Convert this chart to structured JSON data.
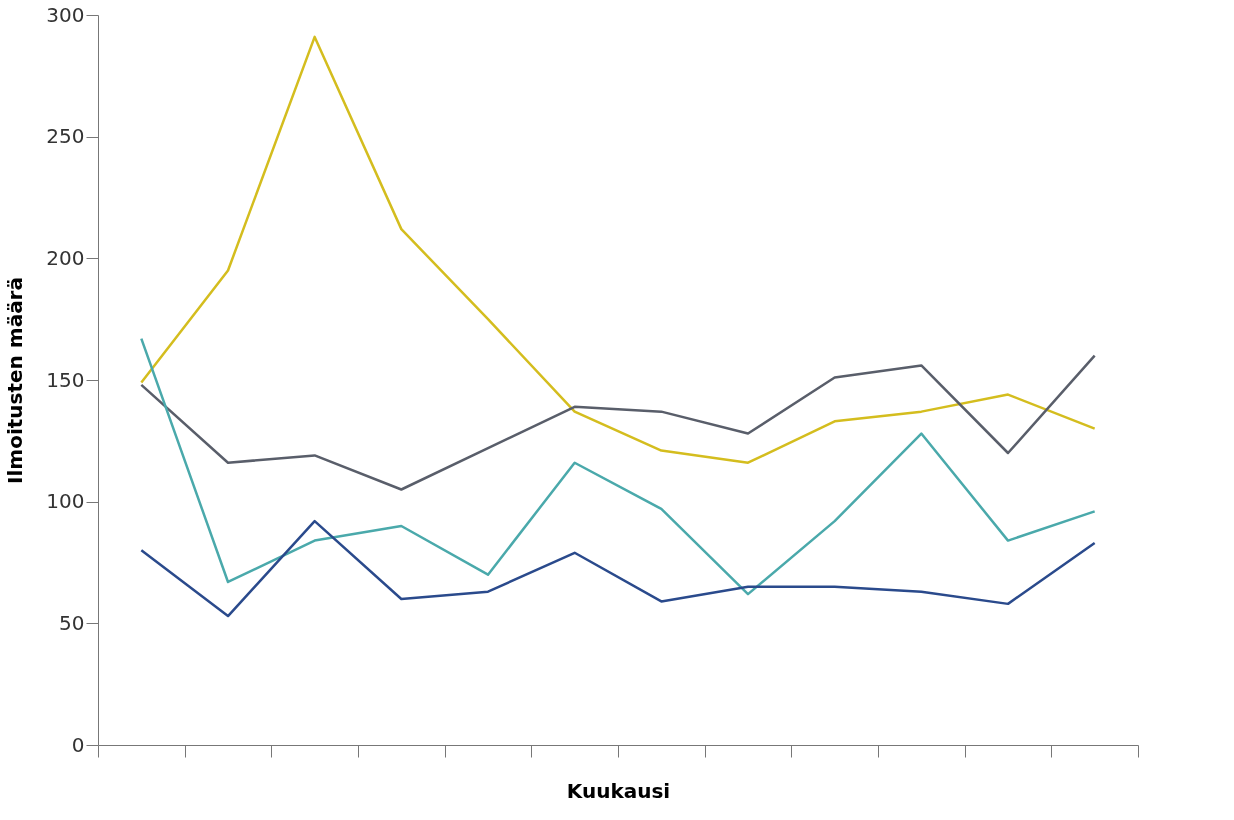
{
  "chart_data": {
    "type": "line",
    "xlabel": "Kuukausi",
    "ylabel": "Ilmoitusten määrä",
    "categories": [
      null,
      null,
      null,
      null,
      null,
      null,
      null,
      null,
      null,
      null,
      null,
      null
    ],
    "ylim": [
      0,
      300
    ],
    "yticks": [
      0,
      50,
      100,
      150,
      200,
      250,
      300
    ],
    "grid": false,
    "tick_labels": "y",
    "line_style": "solid",
    "marker": "none",
    "series": [
      {
        "color": "#d4bd1e",
        "values": [
          149,
          195,
          291,
          212,
          175,
          137,
          121,
          116,
          133,
          137,
          144,
          130
        ]
      },
      {
        "color": "#595e6a",
        "values": [
          148,
          116,
          119,
          105,
          122,
          139,
          137,
          128,
          151,
          156,
          120,
          160
        ]
      },
      {
        "color": "#4aa9ab",
        "values": [
          167,
          67,
          84,
          90,
          70,
          116,
          97,
          62,
          92,
          128,
          84,
          96
        ]
      },
      {
        "color": "#2a4a8c",
        "values": [
          80,
          53,
          92,
          60,
          63,
          79,
          59,
          65,
          65,
          63,
          58,
          83
        ]
      }
    ]
  }
}
